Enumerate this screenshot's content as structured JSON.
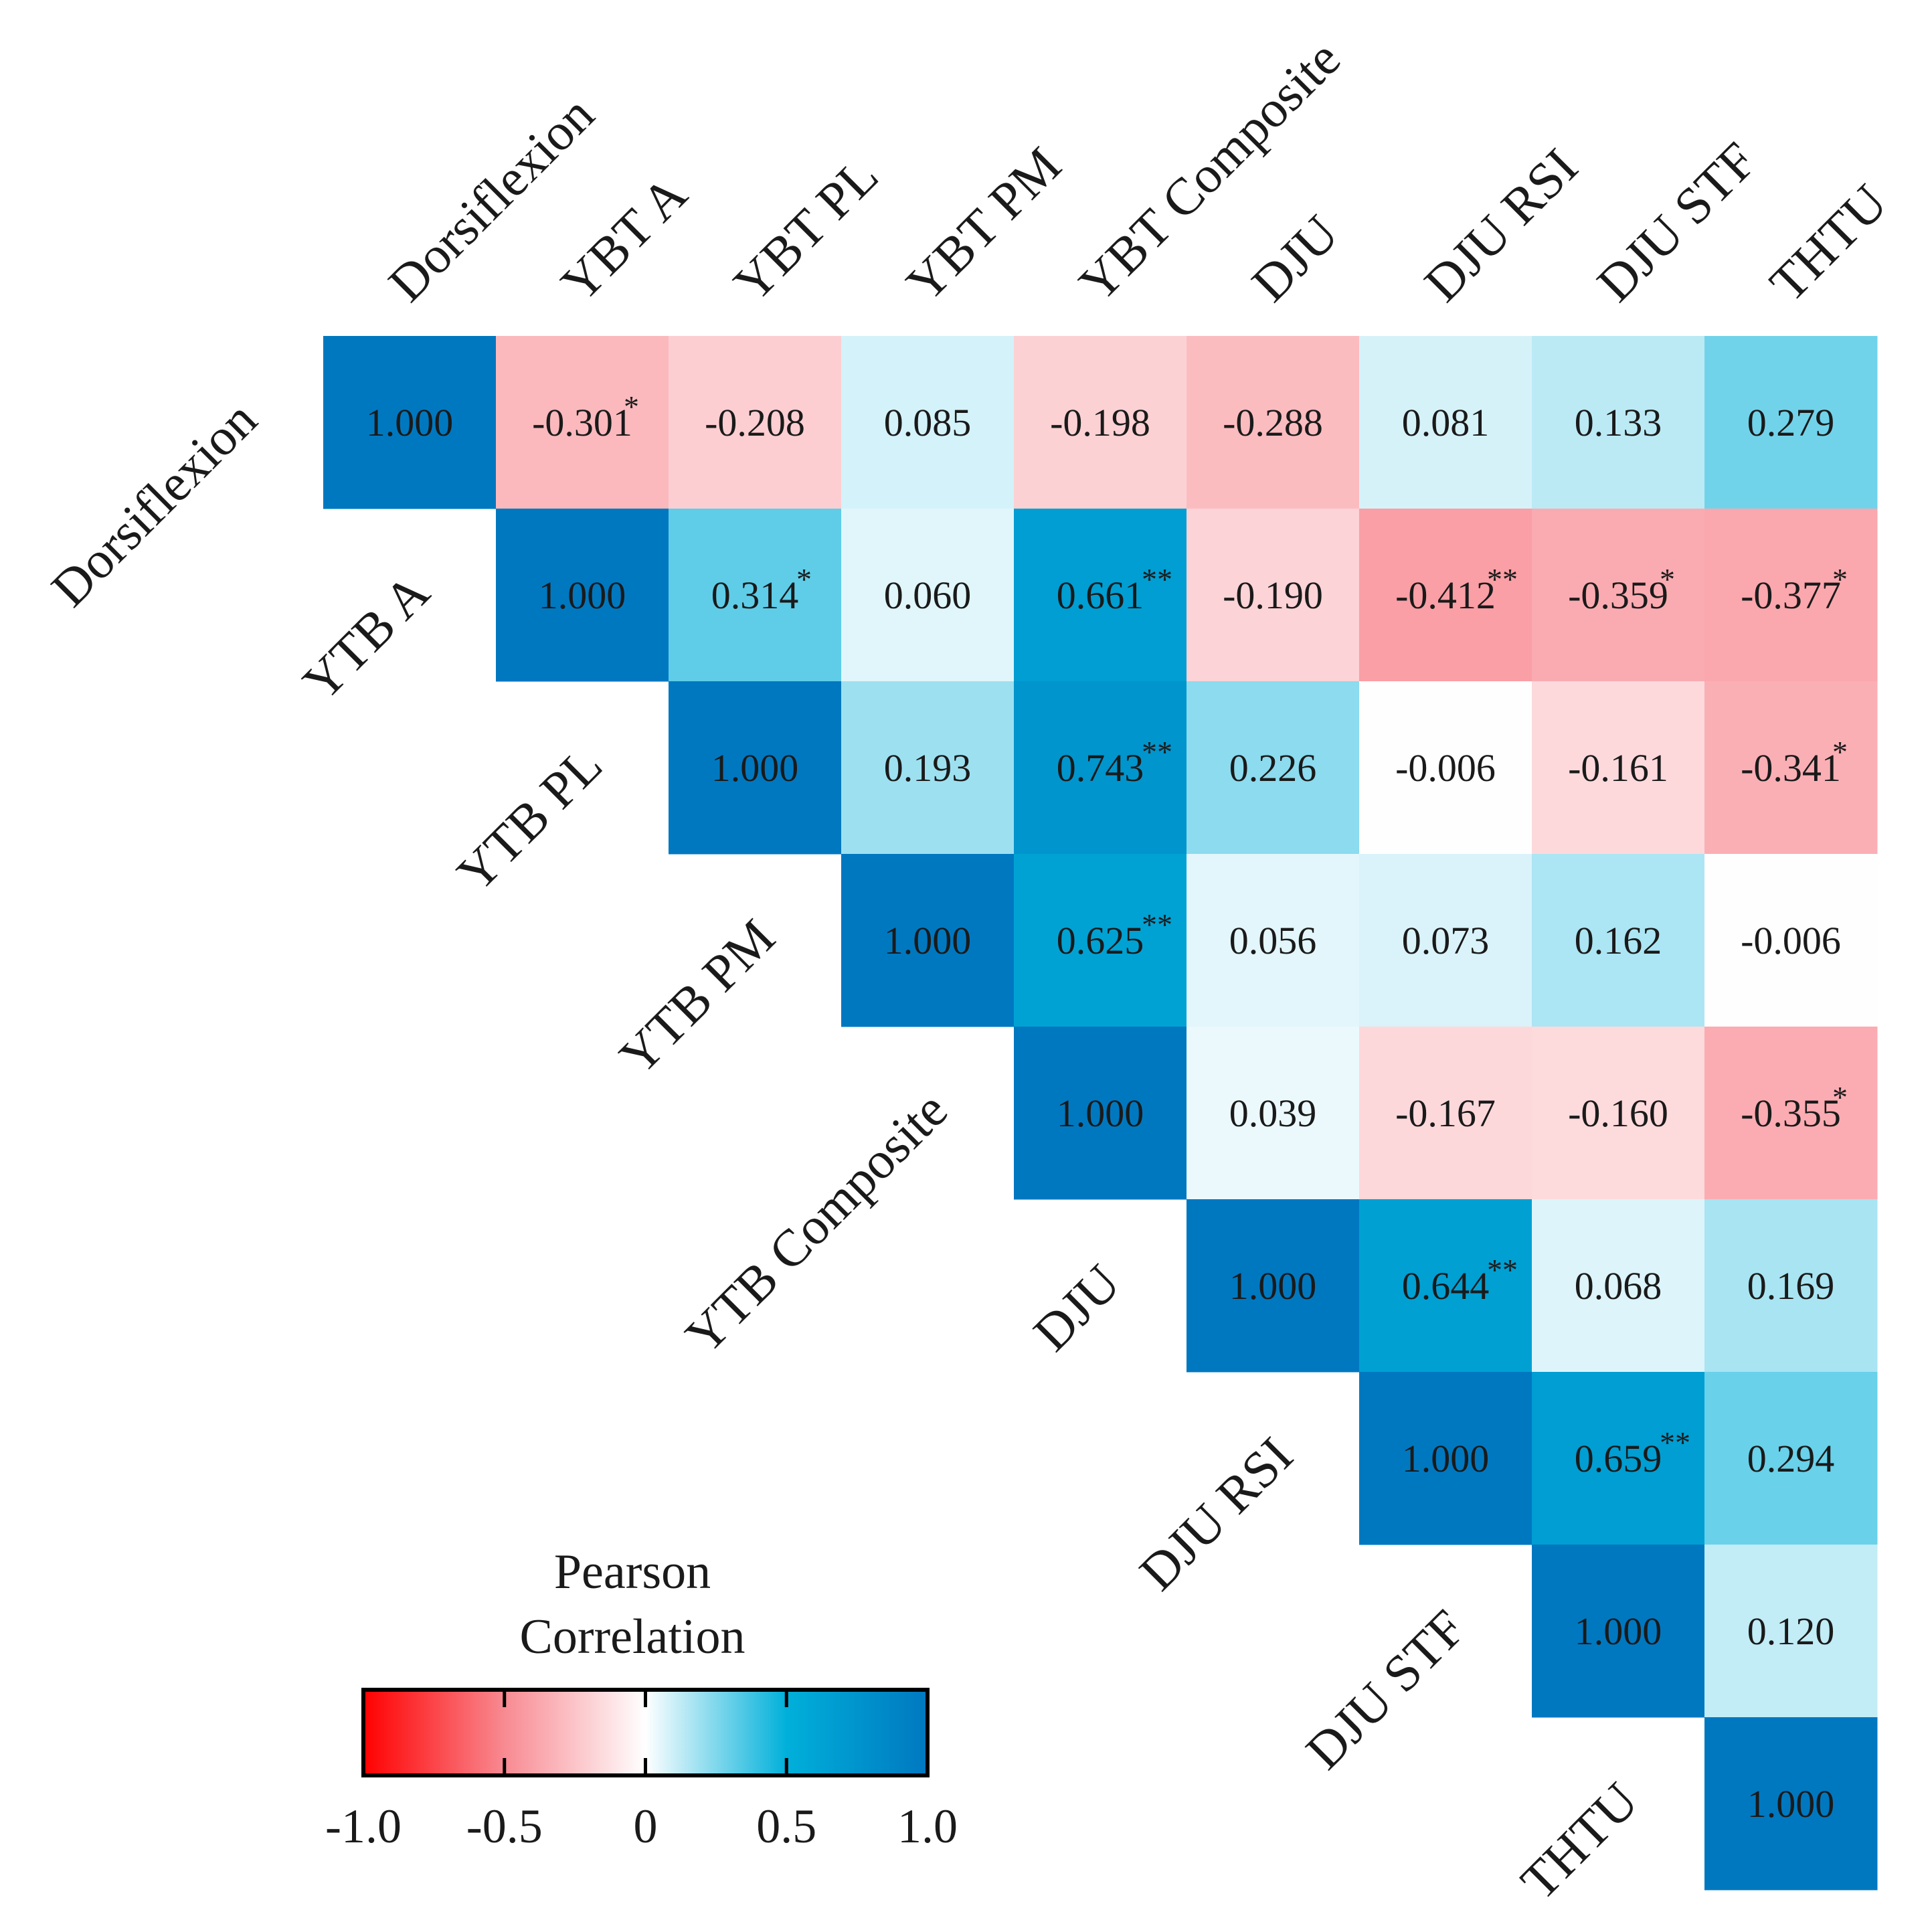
{
  "chart_data": {
    "type": "heatmap",
    "variant": "upper-triangular correlation matrix",
    "column_labels": [
      "Dorsiflexion",
      "YBT A",
      "YBT PL",
      "YBT PM",
      "YBT Composite",
      "DJU",
      "DJU RSI",
      "DJU STF",
      "THTU"
    ],
    "row_labels": [
      "Dorsiflexion",
      "YTB A",
      "YTB PL",
      "YTB PM",
      "YTB Composite",
      "DJU",
      "DJU RSI",
      "DJU STF",
      "THTU"
    ],
    "values": [
      [
        "1.000",
        "-0.301",
        "-0.208",
        "0.085",
        "-0.198",
        "-0.288",
        "0.081",
        "0.133",
        "0.279"
      ],
      [
        null,
        "1.000",
        "0.314",
        "0.060",
        "0.661",
        "-0.190",
        "-0.412",
        "-0.359",
        "-0.377"
      ],
      [
        null,
        null,
        "1.000",
        "0.193",
        "0.743",
        "0.226",
        "-0.006",
        "-0.161",
        "-0.341"
      ],
      [
        null,
        null,
        null,
        "1.000",
        "0.625",
        "0.056",
        "0.073",
        "0.162",
        "-0.006"
      ],
      [
        null,
        null,
        null,
        null,
        "1.000",
        "0.039",
        "-0.167",
        "-0.160",
        "-0.355"
      ],
      [
        null,
        null,
        null,
        null,
        null,
        "1.000",
        "0.644",
        "0.068",
        "0.169"
      ],
      [
        null,
        null,
        null,
        null,
        null,
        null,
        "1.000",
        "0.659",
        "0.294"
      ],
      [
        null,
        null,
        null,
        null,
        null,
        null,
        null,
        "1.000",
        "0.120"
      ],
      [
        null,
        null,
        null,
        null,
        null,
        null,
        null,
        null,
        "1.000"
      ]
    ],
    "significance": [
      [
        "",
        "*",
        "",
        "",
        "",
        "",
        "",
        "",
        ""
      ],
      [
        null,
        "",
        "*",
        "",
        "**",
        "",
        "**",
        "*",
        "*"
      ],
      [
        null,
        null,
        "",
        "",
        "**",
        "",
        "",
        "",
        "*"
      ],
      [
        null,
        null,
        null,
        "",
        "**",
        "",
        "",
        "",
        ""
      ],
      [
        null,
        null,
        null,
        null,
        "",
        "",
        "",
        "",
        "*"
      ],
      [
        null,
        null,
        null,
        null,
        null,
        "",
        "**",
        "",
        ""
      ],
      [
        null,
        null,
        null,
        null,
        null,
        null,
        "",
        "**",
        ""
      ],
      [
        null,
        null,
        null,
        null,
        null,
        null,
        null,
        "",
        ""
      ],
      [
        null,
        null,
        null,
        null,
        null,
        null,
        null,
        null,
        ""
      ]
    ],
    "colorbar": {
      "title_lines": [
        "Pearson",
        "Correlation"
      ],
      "range": [
        -1.0,
        1.0
      ],
      "ticks": [
        -1.0,
        -0.5,
        0,
        0.5,
        1.0
      ],
      "tick_labels": [
        "-1.0",
        "-0.5",
        "0",
        "0.5",
        "1.0"
      ],
      "colors": {
        "negative": "#ff0000",
        "mid_negative": "#f88a92",
        "zero": "#ffffff",
        "mid_positive": "#00b0da",
        "positive": "#0078c0"
      },
      "position": "bottom-left"
    }
  }
}
